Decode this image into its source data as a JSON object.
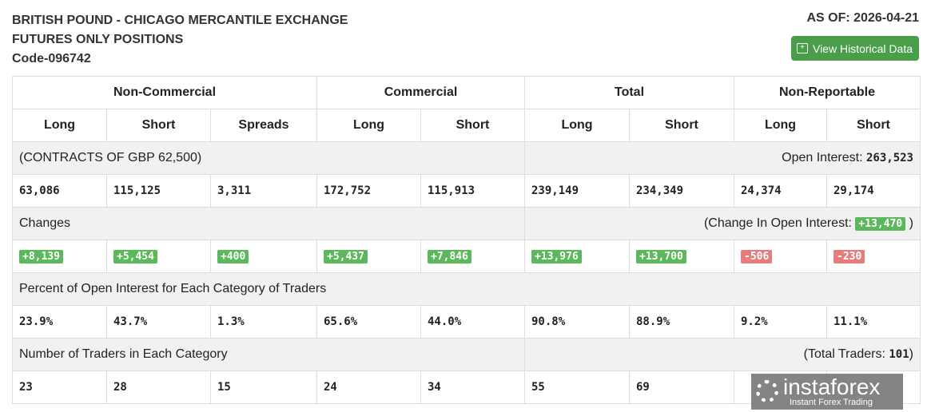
{
  "header": {
    "title1": "BRITISH POUND - CHICAGO MERCANTILE EXCHANGE",
    "title2": "FUTURES ONLY POSITIONS",
    "code": "Code-096742",
    "as_of": "AS OF: 2026-04-21",
    "button": "View Historical Data"
  },
  "groups": [
    "Non-Commercial",
    "Commercial",
    "Total",
    "Non-Reportable"
  ],
  "cols": [
    "Long",
    "Short",
    "Spreads",
    "Long",
    "Short",
    "Long",
    "Short",
    "Long",
    "Short"
  ],
  "contracts": {
    "label": "(CONTRACTS OF GBP 62,500)",
    "oi_label": "Open Interest:",
    "oi": "263,523"
  },
  "positions": [
    "63,086",
    "115,125",
    "3,311",
    "172,752",
    "115,913",
    "239,149",
    "234,349",
    "24,374",
    "29,174"
  ],
  "changes": {
    "label": "Changes",
    "oi_label": "(Change In Open Interest:",
    "oi": "+13,470",
    "close": ")"
  },
  "change_values": [
    {
      "v": "+8,139",
      "c": "g"
    },
    {
      "v": "+5,454",
      "c": "g"
    },
    {
      "v": "+400",
      "c": "g"
    },
    {
      "v": "+5,437",
      "c": "g"
    },
    {
      "v": "+7,846",
      "c": "g"
    },
    {
      "v": "+13,976",
      "c": "g"
    },
    {
      "v": "+13,700",
      "c": "g"
    },
    {
      "v": "-506",
      "c": "r"
    },
    {
      "v": "-230",
      "c": "r"
    }
  ],
  "percent": {
    "label": "Percent of Open Interest for Each Category of Traders"
  },
  "percent_values": [
    "23.9%",
    "43.7%",
    "1.3%",
    "65.6%",
    "44.0%",
    "90.8%",
    "88.9%",
    "9.2%",
    "11.1%"
  ],
  "traders": {
    "label": "Number of Traders in Each Category",
    "total_label": "(Total Traders:",
    "total": "101",
    "close": ")"
  },
  "trader_values": [
    "23",
    "28",
    "15",
    "24",
    "34",
    "55",
    "69",
    "",
    ""
  ],
  "watermark": {
    "name": "instaforex",
    "tagline": "Instant Forex Trading"
  }
}
